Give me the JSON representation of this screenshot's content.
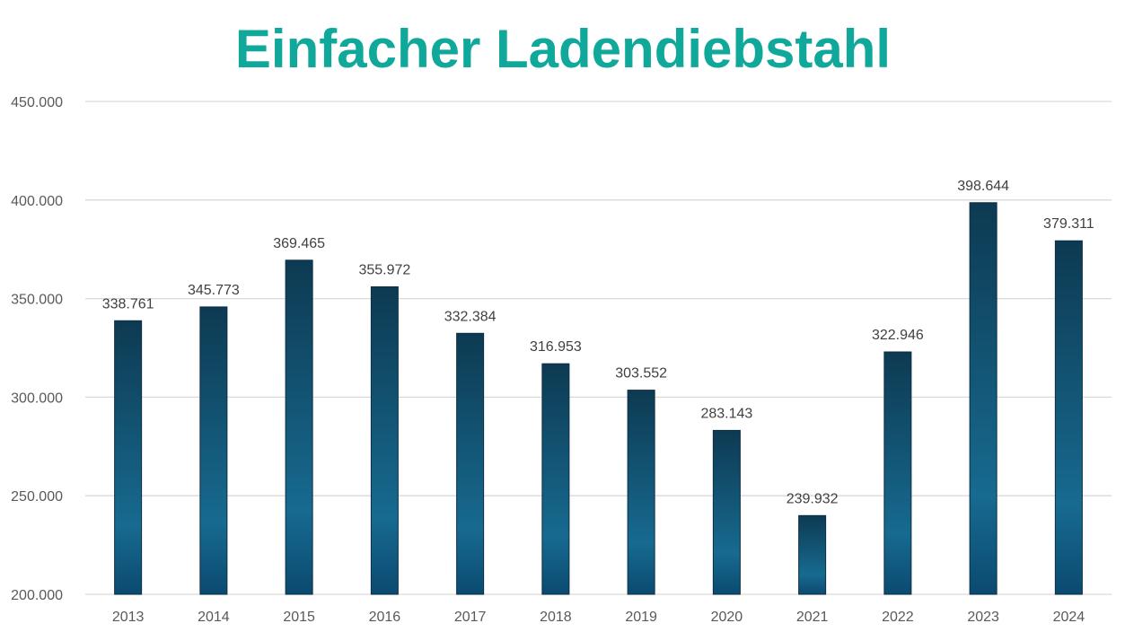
{
  "chart_data": {
    "type": "bar",
    "title": "Einfacher Ladendiebstahl",
    "xlabel": "",
    "ylabel": "",
    "categories": [
      "2013",
      "2014",
      "2015",
      "2016",
      "2017",
      "2018",
      "2019",
      "2020",
      "2021",
      "2022",
      "2023",
      "2024"
    ],
    "values": [
      338761,
      345773,
      369465,
      355972,
      332384,
      316953,
      303552,
      283143,
      239932,
      322946,
      398644,
      379311
    ],
    "value_labels": [
      "338.761",
      "345.773",
      "369.465",
      "355.972",
      "332.384",
      "316.953",
      "303.552",
      "283.143",
      "239.932",
      "322.946",
      "398.644",
      "379.311"
    ],
    "ylim": [
      200000,
      450000
    ],
    "y_ticks": [
      200000,
      250000,
      300000,
      350000,
      400000,
      450000
    ],
    "y_tick_labels": [
      "200.000",
      "250.000",
      "300.000",
      "350.000",
      "400.000",
      "450.000"
    ],
    "grid": true,
    "legend": "none"
  },
  "colors": {
    "title": "#0fa89a",
    "bar_top": "#0d3a52",
    "bar_mid": "#176a90",
    "bar_bottom": "#0b4a70",
    "bar_edge": "#0a2f45",
    "gridline": "#d9d9d9"
  }
}
